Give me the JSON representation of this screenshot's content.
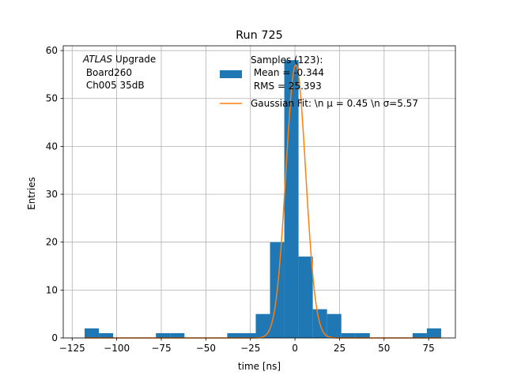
{
  "chart_data": {
    "type": "bar",
    "title": "Run 725",
    "xlabel": "time [ns]",
    "ylabel": "Entries",
    "xlim": [
      -130,
      90
    ],
    "ylim": [
      0,
      61
    ],
    "grid": true,
    "xticks": [
      -125,
      -100,
      -75,
      -50,
      -25,
      0,
      25,
      50,
      75
    ],
    "xtick_labels": [
      "−125",
      "−100",
      "−75",
      "−50",
      "−25",
      "0",
      "25",
      "50",
      "75"
    ],
    "yticks": [
      0,
      10,
      20,
      30,
      40,
      50,
      60
    ],
    "ytick_labels": [
      "0",
      "10",
      "20",
      "30",
      "40",
      "50",
      "60"
    ],
    "histogram": {
      "bin_edges": [
        -118.0,
        -110.0,
        -102.0,
        -94.0,
        -86.0,
        -78.0,
        -70.0,
        -62.0,
        -54.0,
        -46.0,
        -38.0,
        -30.0,
        -22.0,
        -14.0,
        -6.0,
        2.0,
        10.0,
        18.0,
        26.0,
        34.0,
        42.0,
        50.0,
        58.0,
        66.0,
        74.0,
        82.0
      ],
      "counts": [
        2,
        1,
        0,
        0,
        0,
        1,
        1,
        0,
        0,
        0,
        1,
        1,
        5,
        20,
        58,
        17,
        6,
        5,
        1,
        1,
        0,
        0,
        0,
        1,
        2
      ],
      "color": "#1f77b4"
    },
    "fit": {
      "type": "gaussian",
      "mu": 0.45,
      "sigma": 5.57,
      "amplitude": 57,
      "color": "#ff7f0e"
    },
    "legend": {
      "placement": "top-right",
      "entries": [
        {
          "marker": "patch",
          "color": "#1f77b4",
          "lines": [
            "Samples (123):",
            " Mean = -0.344",
            " RMS = 25.393"
          ]
        },
        {
          "marker": "line",
          "color": "#ff7f0e",
          "text": "Gaussian Fit: \\n μ = 0.45 \\n σ=5.57"
        }
      ]
    },
    "annotation": {
      "italic": "ATLAS",
      "rest": " Upgrade",
      "lines": [
        " Board260",
        " Ch005 35dB"
      ]
    }
  }
}
